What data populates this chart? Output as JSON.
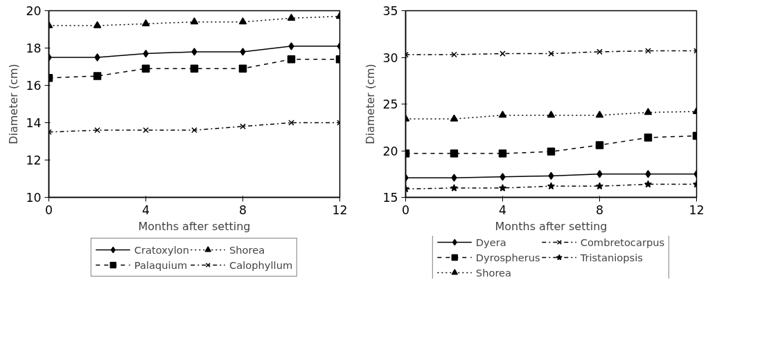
{
  "chart_data": [
    {
      "type": "line",
      "xlabel": "Months after setting",
      "ylabel": "Diameter (cm)",
      "x": [
        0,
        2,
        4,
        6,
        8,
        10,
        12
      ],
      "xlim": [
        0,
        12
      ],
      "xticks": [
        0,
        4,
        8,
        12
      ],
      "ylim": [
        10,
        20
      ],
      "yticks": [
        10,
        12,
        14,
        16,
        18,
        20
      ],
      "grid": false,
      "legend": "bottom",
      "series": [
        {
          "name": "Cratoxylon",
          "color": "#000000",
          "marker": "diamond",
          "line_style": "solid",
          "values": [
            17.5,
            17.5,
            17.7,
            17.8,
            17.8,
            18.1,
            18.1
          ]
        },
        {
          "name": "Palaquium",
          "color": "#000000",
          "marker": "square",
          "line_style": "dashed",
          "values": [
            16.4,
            16.5,
            16.9,
            16.9,
            16.9,
            17.4,
            17.4
          ]
        },
        {
          "name": "Shorea",
          "color": "#000000",
          "marker": "triangle",
          "line_style": "dotted",
          "values": [
            19.2,
            19.2,
            19.3,
            19.4,
            19.4,
            19.6,
            19.7
          ]
        },
        {
          "name": "Calophyllum",
          "color": "#000000",
          "marker": "cross",
          "line_style": "dashdot",
          "values": [
            13.5,
            13.6,
            13.6,
            13.6,
            13.8,
            14.0,
            14.0
          ]
        }
      ]
    },
    {
      "type": "line",
      "xlabel": "Months after setting",
      "ylabel": "Diameter (cm)",
      "x": [
        0,
        2,
        4,
        6,
        8,
        10,
        12
      ],
      "xlim": [
        0,
        12
      ],
      "xticks": [
        0,
        4,
        8,
        12
      ],
      "ylim": [
        15,
        35
      ],
      "yticks": [
        15,
        20,
        25,
        30,
        35
      ],
      "grid": false,
      "legend": "bottom",
      "series": [
        {
          "name": "Dyera",
          "color": "#000000",
          "marker": "diamond",
          "line_style": "solid",
          "values": [
            17.1,
            17.1,
            17.2,
            17.3,
            17.5,
            17.5,
            17.5
          ]
        },
        {
          "name": "Dyrospherus",
          "color": "#000000",
          "marker": "square",
          "line_style": "dashed",
          "values": [
            19.7,
            19.7,
            19.7,
            19.9,
            20.6,
            21.4,
            21.6
          ]
        },
        {
          "name": "Shorea",
          "color": "#000000",
          "marker": "triangle",
          "line_style": "dotted",
          "values": [
            23.4,
            23.4,
            23.8,
            23.8,
            23.8,
            24.1,
            24.2
          ]
        },
        {
          "name": "Combretocarpus",
          "color": "#000000",
          "marker": "cross",
          "line_style": "dashdot",
          "values": [
            30.3,
            30.3,
            30.4,
            30.4,
            30.6,
            30.7,
            30.7
          ]
        },
        {
          "name": "Tristaniopsis",
          "color": "#000000",
          "marker": "star",
          "line_style": "dashdot",
          "values": [
            15.9,
            16.0,
            16.0,
            16.2,
            16.2,
            16.4,
            16.4
          ]
        }
      ]
    }
  ]
}
